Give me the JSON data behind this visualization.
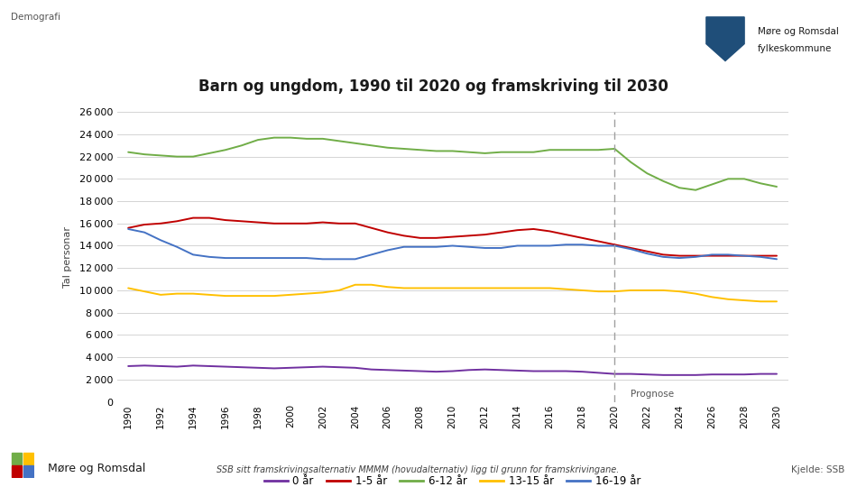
{
  "title": "Barn og ungdom, 1990 til 2020 og framskriving til 2030",
  "ylabel": "Tal personar",
  "top_label": "Demografi",
  "source_text": "SSB sitt framskrivingsalternativ MMMM (hovudalternativ) ligg til grunn for framskrivingane.",
  "source_label": "Kjelde: SSB",
  "footer_label": "Møre og Romsdal",
  "prognose_label": "Prognose",
  "prognose_year": 2020,
  "years_hist": [
    1990,
    1991,
    1992,
    1993,
    1994,
    1995,
    1996,
    1997,
    1998,
    1999,
    2000,
    2001,
    2002,
    2003,
    2004,
    2005,
    2006,
    2007,
    2008,
    2009,
    2010,
    2011,
    2012,
    2013,
    2014,
    2015,
    2016,
    2017,
    2018,
    2019,
    2020
  ],
  "years_prog": [
    2020,
    2021,
    2022,
    2023,
    2024,
    2025,
    2026,
    2027,
    2028,
    2029,
    2030
  ],
  "series": {
    "0 år": {
      "color": "#7030A0",
      "hist": [
        3200,
        3250,
        3200,
        3150,
        3250,
        3200,
        3150,
        3100,
        3050,
        3000,
        3050,
        3100,
        3150,
        3100,
        3050,
        2900,
        2850,
        2800,
        2750,
        2700,
        2750,
        2850,
        2900,
        2850,
        2800,
        2750,
        2750,
        2750,
        2700,
        2600,
        2500
      ],
      "prog": [
        2500,
        2500,
        2450,
        2400,
        2400,
        2400,
        2450,
        2450,
        2450,
        2500,
        2500
      ]
    },
    "1-5 år": {
      "color": "#C00000",
      "hist": [
        15600,
        15900,
        16000,
        16200,
        16500,
        16500,
        16300,
        16200,
        16100,
        16000,
        16000,
        16000,
        16100,
        16000,
        16000,
        15600,
        15200,
        14900,
        14700,
        14700,
        14800,
        14900,
        15000,
        15200,
        15400,
        15500,
        15300,
        15000,
        14700,
        14400,
        14100
      ],
      "prog": [
        14100,
        13800,
        13500,
        13200,
        13100,
        13100,
        13100,
        13100,
        13100,
        13100,
        13100
      ]
    },
    "6-12 år": {
      "color": "#70AD47",
      "hist": [
        22400,
        22200,
        22100,
        22000,
        22000,
        22300,
        22600,
        23000,
        23500,
        23700,
        23700,
        23600,
        23600,
        23400,
        23200,
        23000,
        22800,
        22700,
        22600,
        22500,
        22500,
        22400,
        22300,
        22400,
        22400,
        22400,
        22600,
        22600,
        22600,
        22600,
        22700
      ],
      "prog": [
        22700,
        21500,
        20500,
        19800,
        19200,
        19000,
        19500,
        20000,
        20000,
        19600,
        19300
      ]
    },
    "13-15 år": {
      "color": "#FFC000",
      "hist": [
        10200,
        9900,
        9600,
        9700,
        9700,
        9600,
        9500,
        9500,
        9500,
        9500,
        9600,
        9700,
        9800,
        10000,
        10500,
        10500,
        10300,
        10200,
        10200,
        10200,
        10200,
        10200,
        10200,
        10200,
        10200,
        10200,
        10200,
        10100,
        10000,
        9900,
        9900
      ],
      "prog": [
        9900,
        10000,
        10000,
        10000,
        9900,
        9700,
        9400,
        9200,
        9100,
        9000,
        9000
      ]
    },
    "16-19 år": {
      "color": "#4472C4",
      "hist": [
        15500,
        15200,
        14500,
        13900,
        13200,
        13000,
        12900,
        12900,
        12900,
        12900,
        12900,
        12900,
        12800,
        12800,
        12800,
        13200,
        13600,
        13900,
        13900,
        13900,
        14000,
        13900,
        13800,
        13800,
        14000,
        14000,
        14000,
        14100,
        14100,
        14000,
        14000
      ],
      "prog": [
        14000,
        13700,
        13300,
        13000,
        12900,
        13000,
        13200,
        13200,
        13100,
        13000,
        12800
      ]
    }
  },
  "ylim": [
    0,
    26000
  ],
  "yticks": [
    0,
    2000,
    4000,
    6000,
    8000,
    10000,
    12000,
    14000,
    16000,
    18000,
    20000,
    22000,
    24000,
    26000
  ],
  "background_color": "#ffffff",
  "grid_color": "#d4d4d4",
  "legend_order": [
    "0 år",
    "1-5 år",
    "6-12 år",
    "13-15 år",
    "16-19 år"
  ]
}
